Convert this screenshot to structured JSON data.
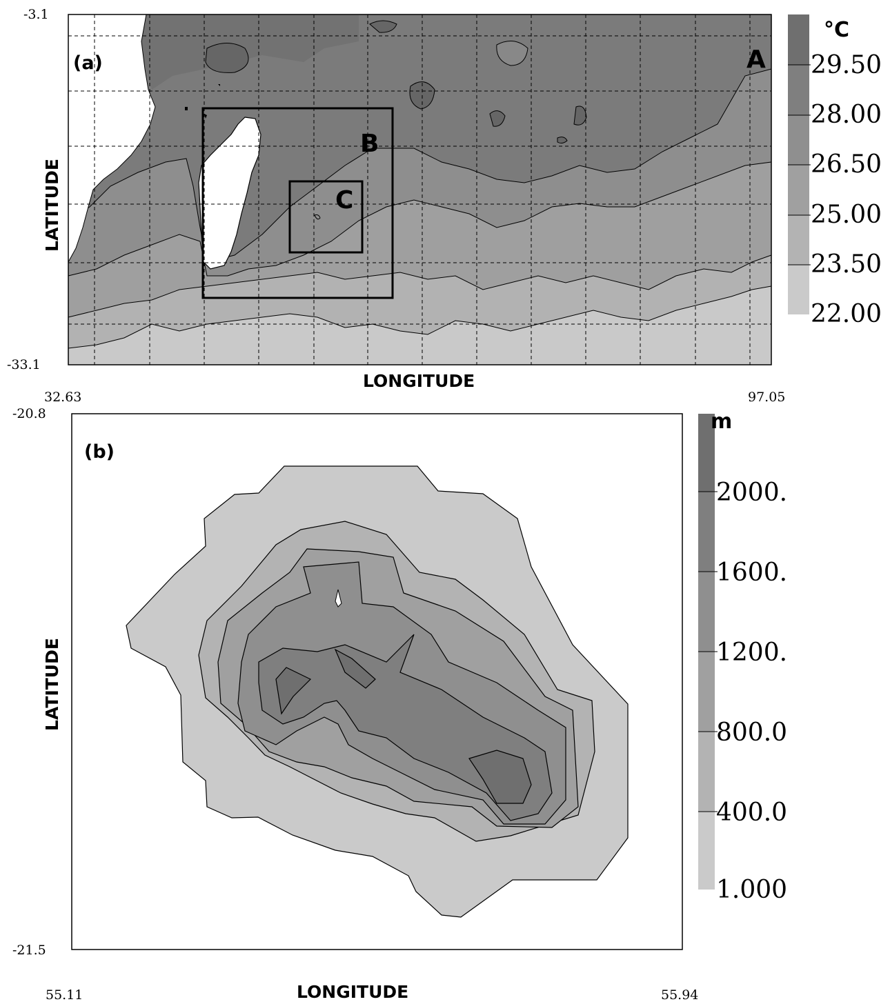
{
  "panel_a": {
    "tag": "(a)",
    "lat_top": "-3.1",
    "lat_bottom": "-33.1",
    "lon_left": "32.63",
    "lon_right": "97.05",
    "xlabel": "LONGITUDE",
    "ylabel": "LATITUDE",
    "unit": "°C",
    "legend": [
      "29.50",
      "28.00",
      "26.50",
      "25.00",
      "23.50",
      "22.00"
    ],
    "box_labels": {
      "A": "A",
      "B": "B",
      "C": "C"
    },
    "colors": [
      "#6f6f6f",
      "#7f7f7f",
      "#8f8f8f",
      "#a0a0a0",
      "#b3b3b3",
      "#cacaca"
    ]
  },
  "panel_b": {
    "tag": "(b)",
    "lat_top": "-20.8",
    "lat_bottom": "-21.5",
    "lon_left": "55.11",
    "lon_right": "55.94",
    "xlabel": "LONGITUDE",
    "ylabel": "LATITUDE",
    "unit": "m",
    "legend": [
      "2000.",
      "1600.",
      "1200.",
      "800.0",
      "400.0",
      "1.000"
    ],
    "colors": [
      "#6f6f6f",
      "#7f7f7f",
      "#8f8f8f",
      "#a0a0a0",
      "#b3b3b3",
      "#cacaca"
    ]
  }
}
